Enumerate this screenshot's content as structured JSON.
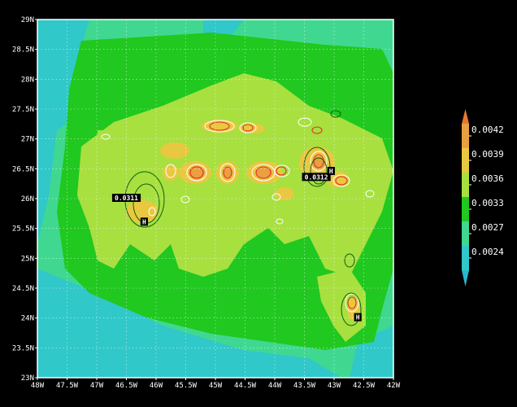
{
  "map": {
    "lat_labels": [
      "29N",
      "28.5N",
      "28N",
      "27.5N",
      "27N",
      "26.5N",
      "26N",
      "25.5N",
      "25N",
      "24.5N",
      "24N",
      "23.5N",
      "23N"
    ],
    "lon_labels": [
      "48W",
      "47.5W",
      "47W",
      "46.5W",
      "46W",
      "45.5W",
      "45W",
      "44.5W",
      "44W",
      "43.5W",
      "43W",
      "42.5W",
      "42W"
    ],
    "lat_range": [
      23,
      29
    ],
    "lon_range": [
      -48,
      -42
    ],
    "grid": true,
    "annotations": [
      {
        "text": "0.0311",
        "lon": -46.5,
        "lat": 26.0
      },
      {
        "text": "0.0312",
        "lon": -43.3,
        "lat": 26.35
      },
      {
        "text": "H",
        "lon": -46.2,
        "lat": 25.6
      },
      {
        "text": "H",
        "lon": -43.05,
        "lat": 26.45
      },
      {
        "text": "H",
        "lon": -42.6,
        "lat": 24.0
      }
    ]
  },
  "colorbar": {
    "labels": [
      "0.0042",
      "0.0039",
      "0.0036",
      "0.0033",
      "0.0027",
      "0.0024"
    ],
    "colors": [
      "#e8a040",
      "#e8c840",
      "#a8e040",
      "#20c820",
      "#40d890",
      "#30c8c8"
    ],
    "extend_top_color": "#e87830",
    "extend_bottom_color": "#28b8d0"
  },
  "colors": {
    "background": "#000000",
    "deep_teal": "#30c8c8",
    "teal_green": "#40d890",
    "green": "#20c820",
    "light_green": "#a8e040",
    "yellow": "#e8c840",
    "orange": "#e8a040",
    "contour_red": "#e83020",
    "contour_white": "#ffffff",
    "contour_darkgreen": "#106010"
  }
}
